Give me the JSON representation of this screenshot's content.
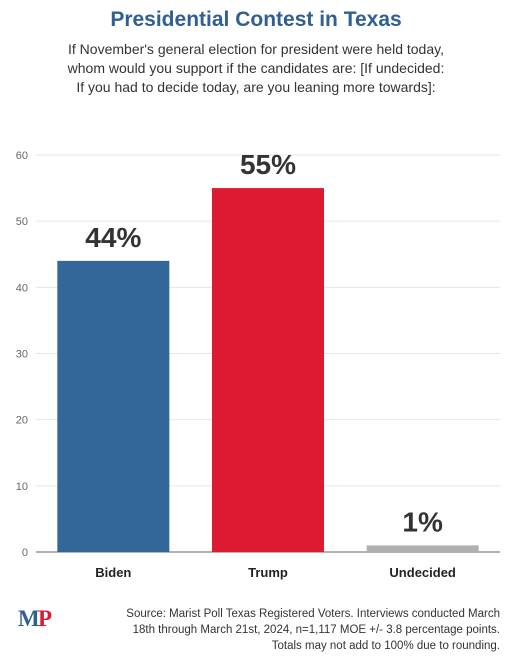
{
  "title": "Presidential Contest in Texas",
  "subtitle": [
    "If November's general election for president were held today,",
    "whom would you support if the candidates are: [If undecided:",
    "If you had to decide today, are you leaning more towards]:"
  ],
  "chart_data": {
    "type": "bar",
    "categories": [
      "Biden",
      "Trump",
      "Undecided"
    ],
    "values": [
      44,
      55,
      1
    ],
    "data_labels": [
      "44%",
      "55%",
      "1%"
    ],
    "colors": [
      "#336699",
      "#dd1a32",
      "#b0b0b0"
    ],
    "ylim": [
      0,
      60
    ],
    "yticks": [
      "0",
      "10",
      "20",
      "30",
      "40",
      "50",
      "60"
    ],
    "grid": true,
    "legend": "none"
  },
  "logo": {
    "text": "MP",
    "color_m": "#2f5f93",
    "color_p": "#dd1a32"
  },
  "source": [
    "Source: Marist Poll Texas Registered Voters. Interviews conducted March",
    "18th through March 21st, 2024, n=1,117 MOE +/- 3.8 percentage points.",
    "Totals may not add to 100% due to rounding."
  ]
}
